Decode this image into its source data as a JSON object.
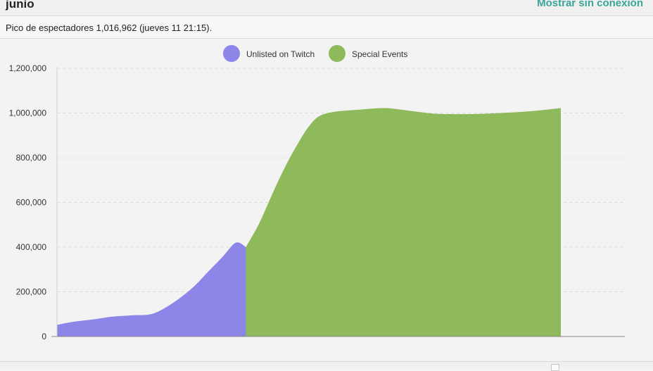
{
  "header": {
    "title": "junio",
    "offline_link": "Mostrar sin conexión"
  },
  "subheader": {
    "peak_text": "Pico de espectadores 1,016,962 (jueves 11 21:15)."
  },
  "colors": {
    "unlisted": "#8e85e9",
    "special": "#8fba5c",
    "link": "#3aa69a"
  },
  "chart_data": {
    "type": "area",
    "legend_position": "top-center",
    "grid": true,
    "ylim": [
      0,
      1200000
    ],
    "yticks": [
      0,
      200000,
      400000,
      600000,
      800000,
      1000000,
      1200000
    ],
    "ytick_labels": [
      "0",
      "200,000",
      "400,000",
      "600,000",
      "800,000",
      "1,000,000",
      "1,200,000"
    ],
    "xlim": [
      0,
      1
    ],
    "series": [
      {
        "name": "Unlisted on Twitch",
        "color": "#8e85e9",
        "x": [
          0.0,
          0.03,
          0.07,
          0.11,
          0.15,
          0.19,
          0.23,
          0.27,
          0.3,
          0.33,
          0.355,
          0.375
        ],
        "values": [
          52000,
          65000,
          76000,
          89000,
          95000,
          102000,
          150000,
          220000,
          290000,
          360000,
          420000,
          400000
        ]
      },
      {
        "name": "Special Events",
        "color": "#8fba5c",
        "x": [
          0.375,
          0.4,
          0.42,
          0.44,
          0.46,
          0.48,
          0.5,
          0.52,
          0.55,
          0.6,
          0.65,
          0.7,
          0.75,
          0.8,
          0.85,
          0.9,
          0.95,
          1.0
        ],
        "values": [
          400000,
          500000,
          600000,
          700000,
          790000,
          870000,
          940000,
          985000,
          1005000,
          1015000,
          1022000,
          1010000,
          997000,
          995000,
          997000,
          1002000,
          1010000,
          1022000
        ]
      }
    ]
  }
}
